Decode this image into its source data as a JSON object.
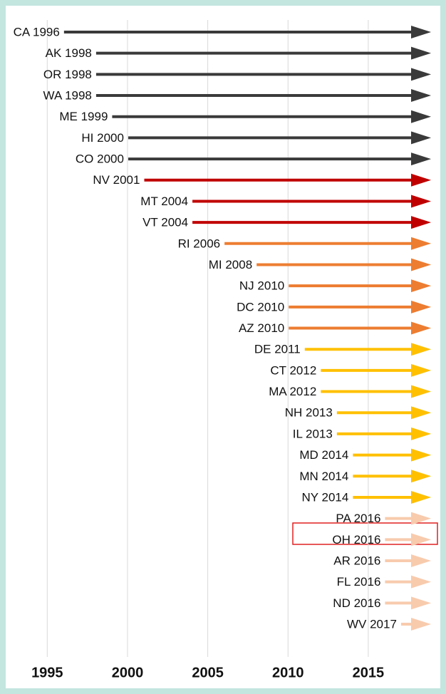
{
  "chart_data": {
    "type": "arrow",
    "categories": [
      "CA 1996",
      "AK 1998",
      "OR 1998",
      "WA 1998",
      "ME 1999",
      "HI 2000",
      "CO 2000",
      "NV 2001",
      "MT 2004",
      "VT 2004",
      "RI 2006",
      "MI 2008",
      "NJ 2010",
      "DC 2010",
      "AZ 2010",
      "DE 2011",
      "CT 2012",
      "MA 2012",
      "NH 2013",
      "IL 2013",
      "MD 2014",
      "MN 2014",
      "NY 2014",
      "PA 2016",
      "OH 2016",
      "AR 2016",
      "FL 2016",
      "ND 2016",
      "WV 2017"
    ],
    "values": [
      1996,
      1998,
      1998,
      1998,
      1999,
      2000,
      2000,
      2001,
      2004,
      2004,
      2006,
      2008,
      2010,
      2010,
      2010,
      2011,
      2012,
      2012,
      2013,
      2013,
      2014,
      2014,
      2014,
      2016,
      2016,
      2016,
      2016,
      2016,
      2017
    ],
    "colors": [
      "#3a3a3a",
      "#3a3a3a",
      "#3a3a3a",
      "#3a3a3a",
      "#3a3a3a",
      "#3a3a3a",
      "#3a3a3a",
      "#c00000",
      "#c00000",
      "#c00000",
      "#ed7d31",
      "#ed7d31",
      "#ed7d31",
      "#ed7d31",
      "#ed7d31",
      "#ffc000",
      "#ffc000",
      "#ffc000",
      "#ffc000",
      "#ffc000",
      "#ffc000",
      "#ffc000",
      "#ffc000",
      "#f8cbad",
      "#f8cbad",
      "#f8cbad",
      "#f8cbad",
      "#f8cbad",
      "#f8cbad"
    ],
    "xlim": [
      1992.5,
      2019
    ],
    "xticks": [
      1995,
      2000,
      2005,
      2010,
      2015
    ],
    "grid": true
  }
}
